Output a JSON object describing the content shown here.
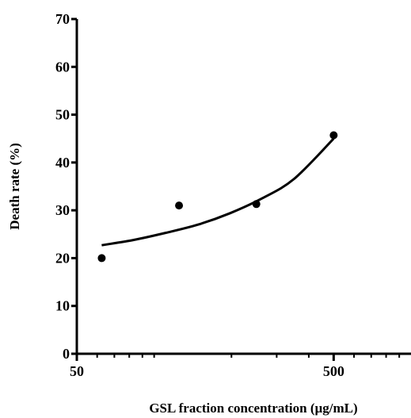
{
  "chart_data": {
    "type": "scatter",
    "title": "",
    "xlabel": "GSL fraction concentration (µg/mL)",
    "ylabel": "Death rate (%)",
    "x_scale": "log",
    "xlim": [
      50,
      1000
    ],
    "ylim": [
      0,
      70
    ],
    "x_ticks": [
      50,
      500
    ],
    "y_ticks": [
      0,
      10,
      20,
      30,
      40,
      50,
      60,
      70
    ],
    "grid": false,
    "legend": "none",
    "points": [
      {
        "x": 62.5,
        "y": 20.0
      },
      {
        "x": 125,
        "y": 31.0
      },
      {
        "x": 250,
        "y": 31.3
      },
      {
        "x": 500,
        "y": 45.7
      }
    ],
    "fit_curve": {
      "x": [
        62.5,
        83.3,
        111.1,
        148.1,
        197.5,
        263.3,
        351.1,
        500
      ],
      "y": [
        22.7,
        23.8,
        25.3,
        27.0,
        29.4,
        32.5,
        36.6,
        45.0
      ]
    },
    "colors": {
      "points": "#000000",
      "fit_line": "#000000",
      "axes": "#000000"
    }
  }
}
